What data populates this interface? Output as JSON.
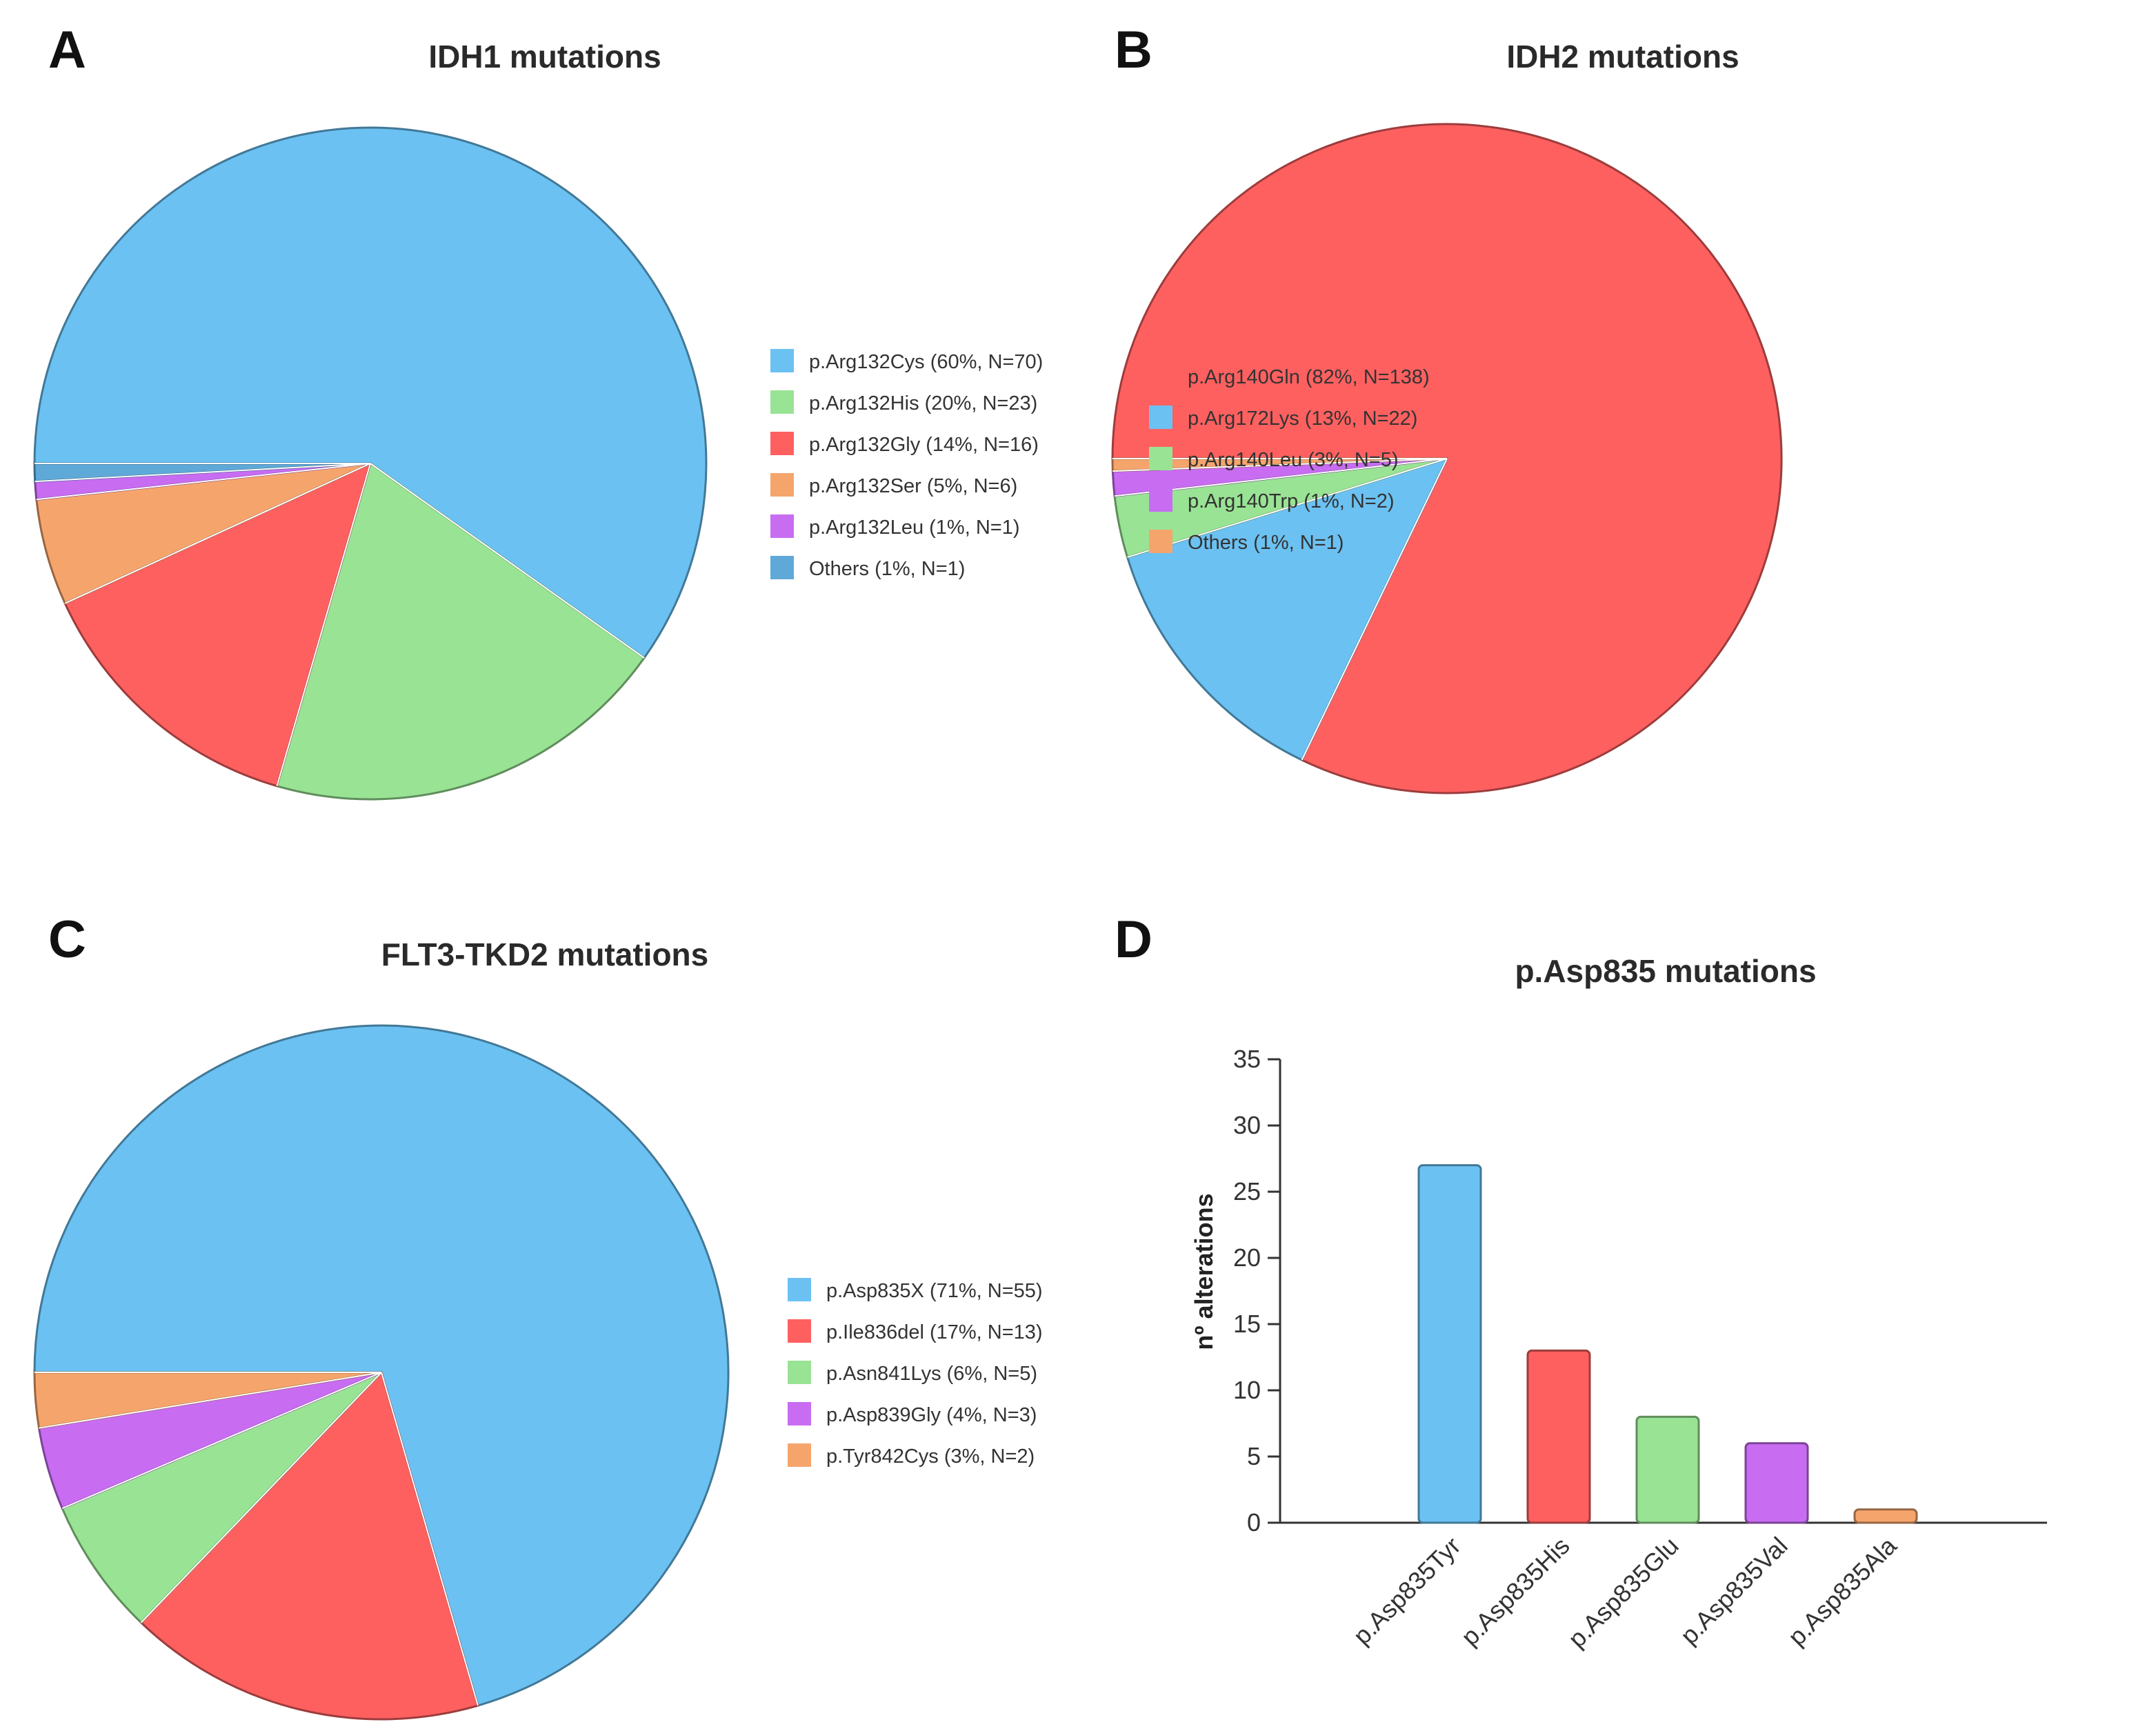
{
  "colors": {
    "blue": "#6BC1F2",
    "green": "#99E394",
    "red": "#FE6060",
    "orange": "#F5A56C",
    "purple": "#C86CF2",
    "dark_blue": "#5FA9D8"
  },
  "panels": {
    "A": "A",
    "B": "B",
    "C": "C",
    "D": "D"
  },
  "chart_data": [
    {
      "type": "pie",
      "panel": "A",
      "title": "IDH1 mutations",
      "start_angle_deg": 180,
      "direction": "counterclockwise",
      "legend_position": "right",
      "slices": [
        {
          "label": "p.Arg132Cys (60%, N=70)",
          "value": 70,
          "color": "#6BC1F2"
        },
        {
          "label": "p.Arg132His (20%, N=23)",
          "value": 23,
          "color": "#99E394"
        },
        {
          "label": "p.Arg132Gly (14%, N=16)",
          "value": 16,
          "color": "#FE6060"
        },
        {
          "label": "p.Arg132Ser (5%, N=6)",
          "value": 6,
          "color": "#F5A56C"
        },
        {
          "label": "p.Arg132Leu (1%, N=1)",
          "value": 1,
          "color": "#C86CF2"
        },
        {
          "label": "Others (1%, N=1)",
          "value": 1,
          "color": "#5FA9D8"
        }
      ]
    },
    {
      "type": "pie",
      "panel": "B",
      "title": "IDH2 mutations",
      "start_angle_deg": 180,
      "direction": "counterclockwise",
      "legend_position": "right",
      "slices": [
        {
          "label": "p.Arg140Gln (82%, N=138)",
          "value": 138,
          "color": "#FE6060"
        },
        {
          "label": "p.Arg172Lys (13%, N=22)",
          "value": 22,
          "color": "#6BC1F2"
        },
        {
          "label": "p.Arg140Leu (3%, N=5)",
          "value": 5,
          "color": "#99E394"
        },
        {
          "label": "p.Arg140Trp (1%, N=2)",
          "value": 2,
          "color": "#C86CF2"
        },
        {
          "label": "Others (1%, N=1)",
          "value": 1,
          "color": "#F5A56C"
        }
      ]
    },
    {
      "type": "pie",
      "panel": "C",
      "title": "FLT3-TKD2 mutations",
      "start_angle_deg": 180,
      "direction": "counterclockwise",
      "legend_position": "right",
      "slices": [
        {
          "label": "p.Asp835X (71%, N=55)",
          "value": 55,
          "color": "#6BC1F2"
        },
        {
          "label": "p.Ile836del (17%, N=13)",
          "value": 13,
          "color": "#FE6060"
        },
        {
          "label": "p.Asn841Lys (6%, N=5)",
          "value": 5,
          "color": "#99E394"
        },
        {
          "label": "p.Asp839Gly (4%, N=3)",
          "value": 3,
          "color": "#C86CF2"
        },
        {
          "label": "p.Tyr842Cys (3%, N=2)",
          "value": 2,
          "color": "#F5A56C"
        }
      ]
    },
    {
      "type": "bar",
      "panel": "D",
      "title": "p.Asp835 mutations",
      "xlabel": "",
      "ylabel": "nº alterations",
      "ylim": [
        0,
        35
      ],
      "yticks": [
        "0",
        "5",
        "10",
        "15",
        "20",
        "25",
        "30",
        "35"
      ],
      "grid": false,
      "categories": [
        "p.Asp835Tyr",
        "p.Asp835His",
        "p.Asp835Glu",
        "p.Asp835Val",
        "p.Asp835Ala"
      ],
      "values": [
        27,
        13,
        8,
        6,
        1
      ],
      "colors": [
        "#6BC1F2",
        "#FE6060",
        "#99E394",
        "#C86CF2",
        "#F5A56C"
      ]
    }
  ]
}
